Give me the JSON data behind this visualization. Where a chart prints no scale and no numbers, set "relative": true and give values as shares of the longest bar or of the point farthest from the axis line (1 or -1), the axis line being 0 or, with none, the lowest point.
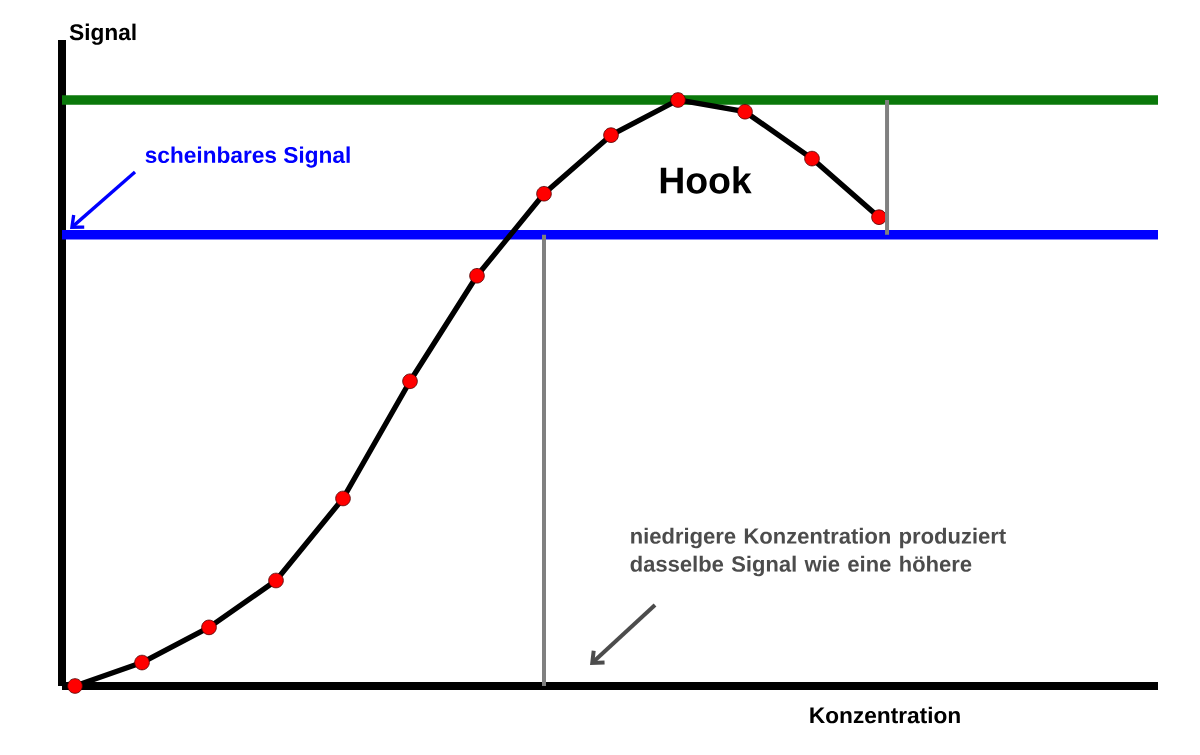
{
  "chart_data": {
    "type": "line",
    "relative": true,
    "xlabel": "Konzentration",
    "ylabel": "Signal",
    "categories": [
      null,
      null,
      null,
      null,
      null,
      null,
      null,
      null,
      null,
      null,
      null,
      null,
      null
    ],
    "series": [
      {
        "color": "#000000",
        "values": [
          0,
          0.04,
          0.1,
          0.18,
          0.32,
          0.52,
          0.7,
          0.84,
          0.94,
          1,
          0.98,
          0.9,
          0.8
        ]
      }
    ],
    "marker": "circle",
    "ref_lines": [
      {
        "axis": "y",
        "value": 1,
        "color": "#0a780a"
      },
      {
        "axis": "y",
        "value": 0.77,
        "label": "scheinbares Signal",
        "color": "#0000ff"
      }
    ],
    "annotations": [
      "Hook",
      "niedrigere Konzentration produziert dasselbe Signal wie eine höhere"
    ]
  }
}
